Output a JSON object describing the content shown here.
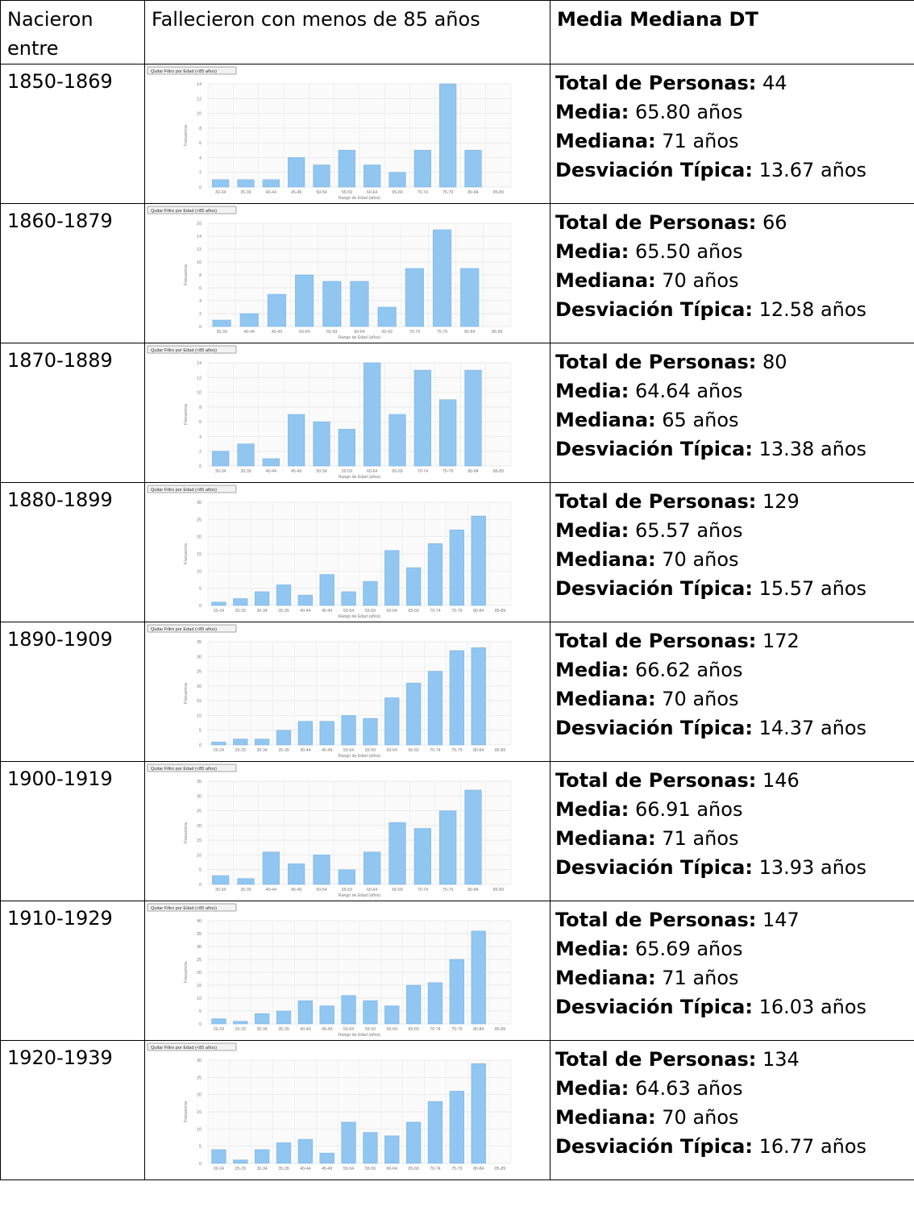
{
  "header": {
    "col1": "Nacieron entre",
    "col2": "Fallecieron con menos de 85 años",
    "col3": "Media Mediana DT"
  },
  "labels": {
    "total": "Total de Personas:",
    "media": "Media:",
    "mediana": "Mediana:",
    "dt": "Desviación Típica:"
  },
  "filter_button": "Quitar Filtro por Edad (<85 años)",
  "rows": [
    {
      "period": "1850-1869",
      "total": "44",
      "media": "65.80 años",
      "mediana": "71 años",
      "dt": "13.67 años"
    },
    {
      "period": "1860-1879",
      "total": "66",
      "media": "65.50 años",
      "mediana": "70 años",
      "dt": "12.58 años"
    },
    {
      "period": "1870-1889",
      "total": "80",
      "media": "64.64 años",
      "mediana": "65 años",
      "dt": "13.38 años"
    },
    {
      "period": "1880-1899",
      "total": "129",
      "media": "65.57 años",
      "mediana": "70 años",
      "dt": "15.57 años"
    },
    {
      "period": "1890-1909",
      "total": "172",
      "media": "66.62 años",
      "mediana": "70 años",
      "dt": "14.37 años"
    },
    {
      "period": "1900-1919",
      "total": "146",
      "media": "66.91 años",
      "mediana": "71 años",
      "dt": "13.93 años"
    },
    {
      "period": "1910-1929",
      "total": "147",
      "media": "65.69 años",
      "mediana": "71 años",
      "dt": "16.03 años"
    },
    {
      "period": "1920-1939",
      "total": "134",
      "media": "64.63 años",
      "mediana": "70 años",
      "dt": "16.77 años"
    }
  ],
  "chart_data": [
    {
      "type": "bar",
      "categories": [
        "30-34",
        "35-39",
        "40-44",
        "45-49",
        "50-54",
        "55-59",
        "60-64",
        "65-69",
        "70-74",
        "75-79",
        "80-84",
        "85-89"
      ],
      "values": [
        1,
        1,
        1,
        4,
        3,
        5,
        3,
        2,
        5,
        14,
        5,
        0
      ],
      "ylim": [
        0,
        14
      ],
      "yticks": [
        0,
        2,
        4,
        6,
        8,
        10,
        12,
        14
      ],
      "xlabel": "Rango de Edad (años)",
      "ylabel": "Frecuencia",
      "bar_color": "#90c6f0",
      "grid": true
    },
    {
      "type": "bar",
      "categories": [
        "35-39",
        "40-44",
        "45-49",
        "50-54",
        "55-59",
        "60-64",
        "65-69",
        "70-74",
        "75-79",
        "80-84",
        "85-89"
      ],
      "values": [
        1,
        2,
        5,
        8,
        7,
        7,
        3,
        9,
        15,
        9,
        0
      ],
      "ylim": [
        0,
        16
      ],
      "yticks": [
        0,
        2,
        4,
        6,
        8,
        10,
        12,
        14,
        16
      ],
      "xlabel": "Rango de Edad (años)",
      "ylabel": "Frecuencia",
      "bar_color": "#90c6f0",
      "grid": true
    },
    {
      "type": "bar",
      "categories": [
        "30-34",
        "35-39",
        "40-44",
        "45-49",
        "50-54",
        "55-59",
        "60-64",
        "65-69",
        "70-74",
        "75-79",
        "80-84",
        "85-89"
      ],
      "values": [
        2,
        3,
        1,
        7,
        6,
        5,
        14,
        7,
        13,
        9,
        13,
        0
      ],
      "ylim": [
        0,
        14
      ],
      "yticks": [
        0,
        2,
        4,
        6,
        8,
        10,
        12,
        14
      ],
      "xlabel": "Rango de Edad (años)",
      "ylabel": "Frecuencia",
      "bar_color": "#90c6f0",
      "grid": true
    },
    {
      "type": "bar",
      "categories": [
        "20-24",
        "25-29",
        "30-34",
        "35-39",
        "40-44",
        "45-49",
        "50-54",
        "55-59",
        "60-64",
        "65-69",
        "70-74",
        "75-79",
        "80-84",
        "85-89"
      ],
      "values": [
        1,
        2,
        4,
        6,
        3,
        9,
        4,
        7,
        16,
        11,
        18,
        22,
        26,
        0
      ],
      "ylim": [
        0,
        30
      ],
      "yticks": [
        0,
        5,
        10,
        15,
        20,
        25,
        30
      ],
      "xlabel": "Rango de Edad (años)",
      "ylabel": "Frecuencia",
      "bar_color": "#90c6f0",
      "grid": true
    },
    {
      "type": "bar",
      "categories": [
        "20-24",
        "25-29",
        "30-34",
        "35-39",
        "40-44",
        "45-49",
        "50-54",
        "55-59",
        "60-64",
        "65-69",
        "70-74",
        "75-79",
        "80-84",
        "85-89"
      ],
      "values": [
        1,
        2,
        2,
        5,
        8,
        8,
        10,
        9,
        16,
        21,
        25,
        32,
        33,
        0
      ],
      "ylim": [
        0,
        35
      ],
      "yticks": [
        0,
        5,
        10,
        15,
        20,
        25,
        30,
        35
      ],
      "xlabel": "Rango de Edad (años)",
      "ylabel": "Frecuencia",
      "bar_color": "#90c6f0",
      "grid": true
    },
    {
      "type": "bar",
      "categories": [
        "30-34",
        "35-39",
        "40-44",
        "45-49",
        "50-54",
        "55-59",
        "60-64",
        "65-69",
        "70-74",
        "75-79",
        "80-84",
        "85-89"
      ],
      "values": [
        3,
        2,
        11,
        7,
        10,
        5,
        11,
        21,
        19,
        25,
        32,
        0
      ],
      "ylim": [
        0,
        35
      ],
      "yticks": [
        0,
        5,
        10,
        15,
        20,
        25,
        30,
        35
      ],
      "xlabel": "Rango de Edad (años)",
      "ylabel": "Frecuencia",
      "bar_color": "#90c6f0",
      "grid": true
    },
    {
      "type": "bar",
      "categories": [
        "20-24",
        "25-29",
        "30-34",
        "35-39",
        "40-44",
        "45-49",
        "50-54",
        "55-59",
        "60-64",
        "65-69",
        "70-74",
        "75-79",
        "80-84",
        "85-89"
      ],
      "values": [
        2,
        1,
        4,
        5,
        9,
        7,
        11,
        9,
        7,
        15,
        16,
        25,
        36,
        0
      ],
      "ylim": [
        0,
        40
      ],
      "yticks": [
        0,
        5,
        10,
        15,
        20,
        25,
        30,
        35,
        40
      ],
      "xlabel": "Rango de Edad (años)",
      "ylabel": "Frecuencia",
      "bar_color": "#90c6f0",
      "grid": true
    },
    {
      "type": "bar",
      "categories": [
        "20-24",
        "25-29",
        "30-34",
        "35-39",
        "40-44",
        "45-49",
        "50-54",
        "55-59",
        "60-64",
        "65-69",
        "70-74",
        "75-79",
        "80-84",
        "85-89"
      ],
      "values": [
        4,
        1,
        4,
        6,
        7,
        3,
        12,
        9,
        8,
        12,
        18,
        21,
        29,
        0
      ],
      "ylim": [
        0,
        30
      ],
      "yticks": [
        0,
        5,
        10,
        15,
        20,
        25,
        30
      ],
      "xlabel": "",
      "ylabel": "Frecuencia",
      "bar_color": "#90c6f0",
      "grid": true
    }
  ]
}
